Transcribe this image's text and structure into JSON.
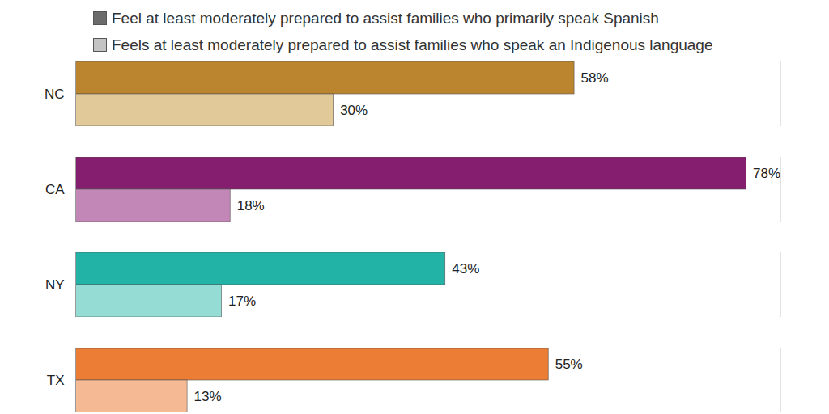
{
  "chart_data": {
    "type": "bar",
    "orientation": "horizontal",
    "categories": [
      "NC",
      "CA",
      "NY",
      "TX"
    ],
    "series": [
      {
        "name": "Feel at least moderately prepared to assist families who primarily speak Spanish",
        "color": "#6b6b6b",
        "colors": [
          "#bb8530",
          "#851e6e",
          "#22b3a6",
          "#ec7d34"
        ],
        "values": [
          58,
          78,
          43,
          55
        ],
        "value_labels": [
          "58%",
          "78%",
          "43%",
          "55%"
        ]
      },
      {
        "name": "Feels at least moderately prepared to assist families who speak an Indigenous language",
        "color": "#c4c4c4",
        "colors": [
          "#e2c99a",
          "#c287b6",
          "#95dcd5",
          "#f5b994"
        ],
        "values": [
          30,
          18,
          17,
          13
        ],
        "value_labels": [
          "30%",
          "18%",
          "17%",
          "13%"
        ]
      }
    ],
    "xlim": [
      0,
      82
    ],
    "xticks": [],
    "data_labels": true,
    "tick_labels": "y",
    "legend": "top-left"
  }
}
